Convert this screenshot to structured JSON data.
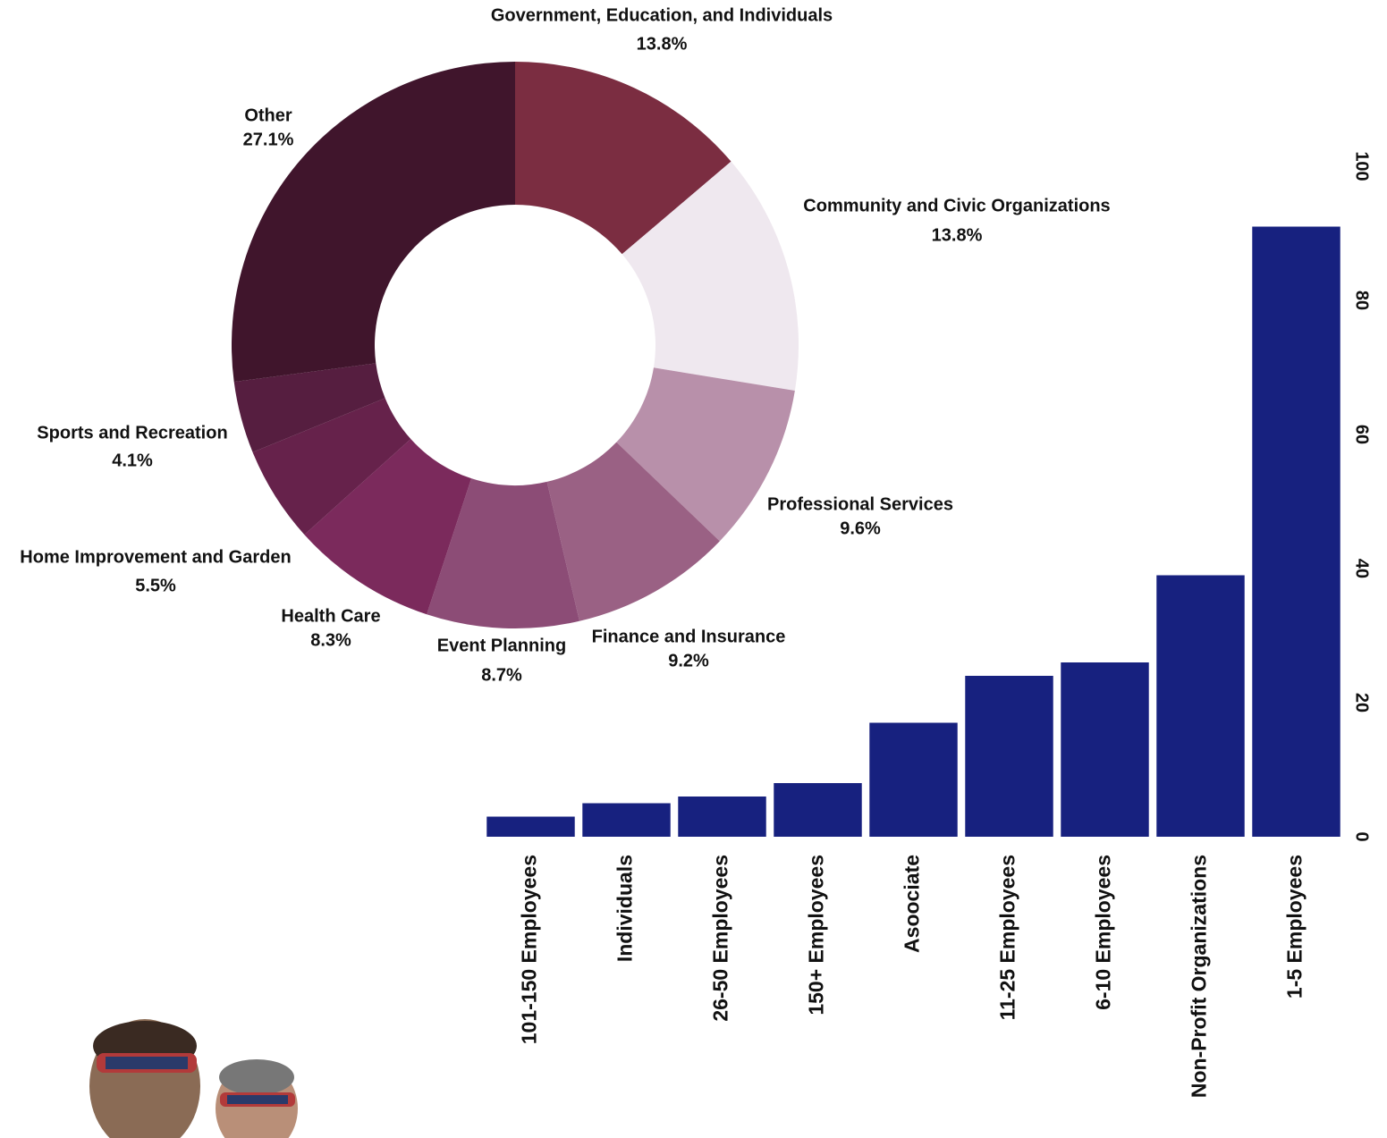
{
  "chart_data": [
    {
      "type": "pie",
      "categories": [
        "Government, Education, and Individuals",
        "Community and Civic Organizations",
        "Professional Services",
        "Finance and Insurance",
        "Event Planning",
        "Health Care",
        "Home Improvement and Garden",
        "Sports and Recreation",
        "Other"
      ],
      "values": [
        13.8,
        13.8,
        9.6,
        9.2,
        8.7,
        8.3,
        5.5,
        4.1,
        27.1
      ],
      "value_labels": [
        "13.8%",
        "13.8%",
        "9.6%",
        "9.2%",
        "8.7%",
        "8.3%",
        "5.5%",
        "4.1%",
        "27.1%"
      ],
      "colors": [
        "#7b2d41",
        "#efe8ef",
        "#b890aa",
        "#9a6184",
        "#8c4c76",
        "#7b2a5c",
        "#66224b",
        "#561e40",
        "#40152c"
      ]
    },
    {
      "type": "bar",
      "categories": [
        "101-150 Employees",
        "Individuals",
        "26-50 Employees",
        "150+ Employees",
        "Asoociate",
        "11-25 Employees",
        "6-10 Employees",
        "Non-Profit Organizations",
        "1-5 Employees"
      ],
      "values": [
        3,
        5,
        6,
        8,
        17,
        24,
        26,
        39,
        91
      ],
      "color": "#17217f",
      "ylim": [
        0,
        100
      ],
      "yticks": [
        0,
        20,
        40,
        60,
        80,
        100
      ]
    }
  ]
}
